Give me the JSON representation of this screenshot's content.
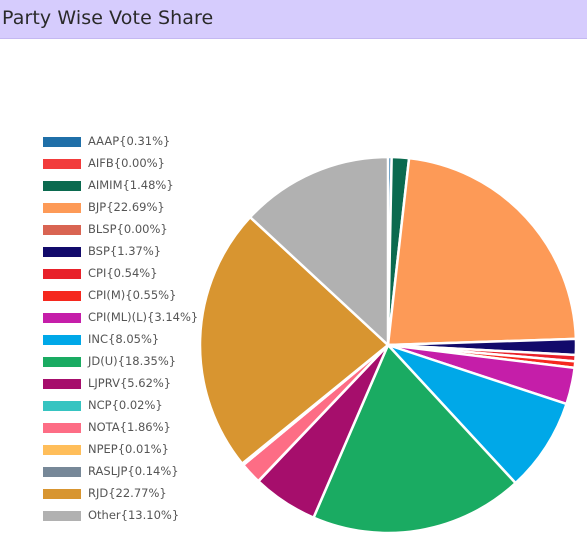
{
  "header": {
    "title": "Party Wise Vote Share"
  },
  "chart_data": {
    "type": "pie",
    "title": "Party Wise Vote Share",
    "legend_position": "left",
    "series": [
      {
        "name": "AAAP",
        "label": "AAAP{0.31%}",
        "value": 0.31,
        "color": "#1f6fa8"
      },
      {
        "name": "AIFB",
        "label": "AIFB{0.00%}",
        "value": 0.0,
        "color": "#f23b3b"
      },
      {
        "name": "AIMIM",
        "label": "AIMIM{1.48%}",
        "value": 1.48,
        "color": "#0b6a4f"
      },
      {
        "name": "BJP",
        "label": "BJP{22.69%}",
        "value": 22.69,
        "color": "#fd9a57"
      },
      {
        "name": "BLSP",
        "label": "BLSP{0.00%}",
        "value": 0.0,
        "color": "#d96452"
      },
      {
        "name": "BSP",
        "label": "BSP{1.37%}",
        "value": 1.37,
        "color": "#120a6b"
      },
      {
        "name": "CPI",
        "label": "CPI{0.54%}",
        "value": 0.54,
        "color": "#e8212a"
      },
      {
        "name": "CPI(M)",
        "label": "CPI(M){0.55%}",
        "value": 0.55,
        "color": "#f5281e"
      },
      {
        "name": "CPI(ML)(L)",
        "label": "CPI(ML)(L){3.14%}",
        "value": 3.14,
        "color": "#c51ea9"
      },
      {
        "name": "INC",
        "label": "INC{8.05%}",
        "value": 8.05,
        "color": "#00a8e8"
      },
      {
        "name": "JD(U)",
        "label": "JD(U){18.35%}",
        "value": 18.35,
        "color": "#1aab62"
      },
      {
        "name": "LJPRV",
        "label": "LJPRV{5.62%}",
        "value": 5.62,
        "color": "#a60e6c"
      },
      {
        "name": "NCP",
        "label": "NCP{0.02%}",
        "value": 0.02,
        "color": "#36c4c1"
      },
      {
        "name": "NOTA",
        "label": "NOTA{1.86%}",
        "value": 1.86,
        "color": "#fd6d85"
      },
      {
        "name": "NPEP",
        "label": "NPEP{0.01%}",
        "value": 0.01,
        "color": "#ffbe5a"
      },
      {
        "name": "RASLJP",
        "label": "RASLJP{0.14%}",
        "value": 0.14,
        "color": "#778898"
      },
      {
        "name": "RJD",
        "label": "RJD{22.77%}",
        "value": 22.77,
        "color": "#d89530"
      },
      {
        "name": "Other",
        "label": "Other{13.10%}",
        "value": 13.1,
        "color": "#b1b1b1"
      }
    ]
  }
}
